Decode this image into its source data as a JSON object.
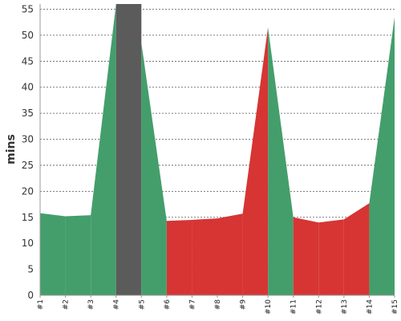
{
  "chart_data": {
    "type": "area",
    "ylabel": "mins",
    "xlabel": "",
    "title": "",
    "categories": [
      "#1",
      "#2",
      "#3",
      "#4",
      "#5",
      "#6",
      "#7",
      "#8",
      "#9",
      "#10",
      "#11",
      "#12",
      "#13",
      "#14",
      "#15"
    ],
    "values": [
      15.8,
      15.2,
      15.4,
      60,
      48.5,
      14.3,
      14.5,
      14.8,
      15.7,
      51.5,
      15.0,
      14.0,
      14.6,
      17.7,
      53.5
    ],
    "segment_status": [
      "green",
      "green",
      "green",
      "gray",
      "green",
      "red",
      "red",
      "red",
      "red",
      "green",
      "red",
      "red",
      "red",
      "green"
    ],
    "status_colors": {
      "green": "#449e6b",
      "red": "#d63534",
      "gray": "#5b5b5b"
    },
    "ylim": [
      0,
      56
    ],
    "yticks": [
      0,
      5,
      10,
      15,
      20,
      25,
      30,
      35,
      40,
      45,
      50,
      55
    ],
    "grid": "horizontal-dashed"
  }
}
